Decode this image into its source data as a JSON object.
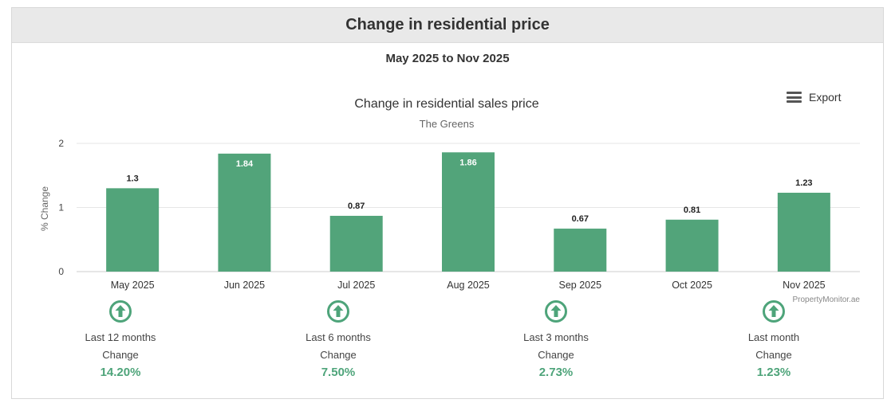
{
  "header": {
    "title": "Change in residential price"
  },
  "date_range": "May 2025 to Nov 2025",
  "export": {
    "label": "Export",
    "icon": "hamburger-menu-icon"
  },
  "credit": "PropertyMonitor.ae",
  "colors": {
    "bar": "#52a47a",
    "accent": "#4ea47a",
    "grid": "#e6e6e6"
  },
  "chart_data": {
    "type": "bar",
    "title": "Change in residential sales price",
    "subtitle": "The Greens",
    "ylabel": "% Change",
    "xlabel": "",
    "ylim": [
      0,
      2
    ],
    "yticks": [
      0,
      1,
      2
    ],
    "categories": [
      "May 2025",
      "Jun 2025",
      "Jul 2025",
      "Aug 2025",
      "Sep 2025",
      "Oct 2025",
      "Nov 2025"
    ],
    "values": [
      1.3,
      1.84,
      0.87,
      1.86,
      0.67,
      0.81,
      1.23
    ],
    "labels_inside": [
      false,
      true,
      false,
      true,
      false,
      false,
      false
    ],
    "grid": true
  },
  "summary": [
    {
      "period": "Last 12 months",
      "change_label": "Change",
      "value": "14.20%"
    },
    {
      "period": "Last 6 months",
      "change_label": "Change",
      "value": "7.50%"
    },
    {
      "period": "Last 3 months",
      "change_label": "Change",
      "value": "2.73%"
    },
    {
      "period": "Last month",
      "change_label": "Change",
      "value": "1.23%"
    }
  ]
}
